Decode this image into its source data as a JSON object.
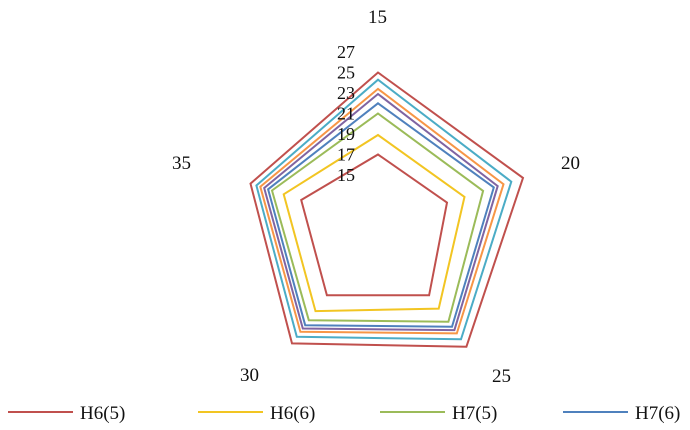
{
  "chart_data": {
    "type": "radar",
    "categories": [
      "15",
      "20",
      "25",
      "30",
      "35"
    ],
    "r_ticks": [
      "15",
      "17",
      "19",
      "21",
      "23",
      "25",
      "27"
    ],
    "r_range": [
      15,
      27
    ],
    "grid": false,
    "legend_position": "bottom",
    "series": [
      {
        "name": "H6(5)",
        "color": "#C0504D",
        "values": [
          17.0,
          17.2,
          18.6,
          18.6,
          18.0
        ]
      },
      {
        "name": "H6(6)",
        "color": "#F2C522",
        "values": [
          18.9,
          19.0,
          20.2,
          20.5,
          19.8
        ]
      },
      {
        "name": "H7(5)",
        "color": "#9BBB59",
        "values": [
          21.0,
          20.9,
          21.8,
          21.6,
          21.0
        ]
      },
      {
        "name": "H7(6)",
        "color": "#4F81BD",
        "values": [
          22.0,
          22.0,
          22.4,
          22.2,
          21.4
        ]
      },
      {
        "name": "",
        "color": "#8064A2",
        "values": [
          22.9,
          22.4,
          22.8,
          22.6,
          21.8
        ]
      },
      {
        "name": "",
        "color": "#F79646",
        "values": [
          23.4,
          23.0,
          23.2,
          23.0,
          22.2
        ]
      },
      {
        "name": "",
        "color": "#4BACC6",
        "values": [
          24.3,
          23.8,
          23.9,
          23.6,
          22.6
        ]
      },
      {
        "name": "",
        "color": "#C0504D",
        "values": [
          25.0,
          25.0,
          24.8,
          24.4,
          23.2
        ]
      }
    ]
  }
}
